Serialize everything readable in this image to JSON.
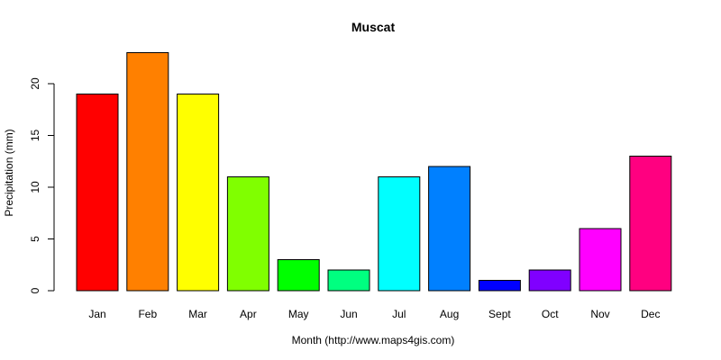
{
  "chart_data": {
    "type": "bar",
    "title": "Muscat",
    "xlabel": "Month (http://www.maps4gis.com)",
    "ylabel": "Precipitation (mm)",
    "categories": [
      "Jan",
      "Feb",
      "Mar",
      "Apr",
      "May",
      "Jun",
      "Jul",
      "Aug",
      "Sept",
      "Oct",
      "Nov",
      "Dec"
    ],
    "values": [
      19,
      23,
      19,
      11,
      3,
      2,
      11,
      12,
      1,
      2,
      6,
      13
    ],
    "colors": [
      "#FF0000",
      "#FF8000",
      "#FFFF00",
      "#80FF00",
      "#00FF00",
      "#00FF80",
      "#00FFFF",
      "#0080FF",
      "#0000FF",
      "#8000FF",
      "#FF00FF",
      "#FF0080"
    ],
    "yticks": [
      0,
      5,
      10,
      15,
      20
    ],
    "ylim": [
      0,
      23
    ],
    "grid": false
  }
}
